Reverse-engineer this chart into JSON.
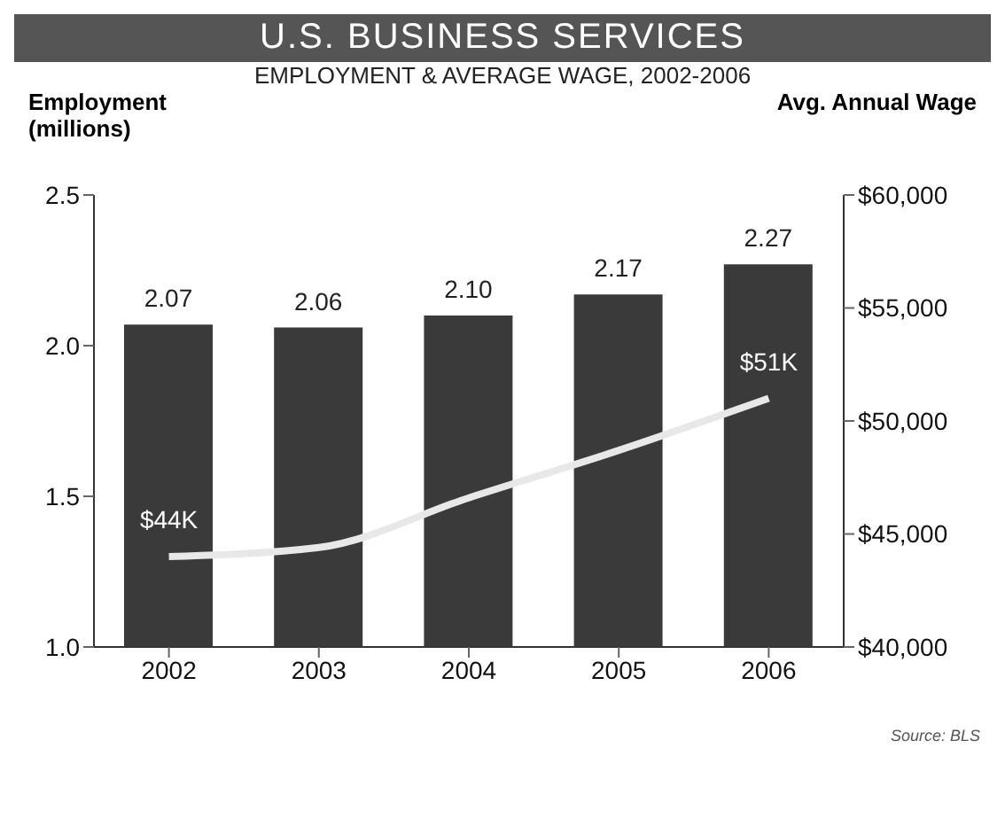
{
  "chart_data": {
    "type": "bar",
    "title": "U.S. BUSINESS SERVICES",
    "subtitle": "EMPLOYMENT & AVERAGE WAGE, 2002-2006",
    "ylabel": "Employment\n(millions)",
    "y2label": "Avg. Annual Wage",
    "categories": [
      "2002",
      "2003",
      "2004",
      "2005",
      "2006"
    ],
    "series": [
      {
        "color": "#3a3a3a",
        "values": [
          2.07,
          2.06,
          2.1,
          2.17,
          2.27
        ],
        "value_labels": [
          "2.07",
          "2.06",
          "2.10",
          "2.17",
          "2.27"
        ]
      },
      {
        "type": "line",
        "axis": "y2",
        "color": "#e8e8e8",
        "values": [
          44000,
          44400,
          46600,
          48700,
          51000
        ],
        "value_labels": [
          "$44K",
          null,
          null,
          null,
          "$51K"
        ]
      }
    ],
    "ylim": [
      1.0,
      2.5
    ],
    "yticks": [
      {
        "value": 1.0,
        "label": "1.0"
      },
      {
        "value": 1.5,
        "label": "1.5"
      },
      {
        "value": 2.0,
        "label": "2.0"
      },
      {
        "value": 2.5,
        "label": "2.5"
      }
    ],
    "y2lim": [
      40000,
      60000
    ],
    "y2ticks": [
      {
        "value": 40000,
        "label": "$40,000"
      },
      {
        "value": 45000,
        "label": "$45,000"
      },
      {
        "value": 50000,
        "label": "$50,000"
      },
      {
        "value": 55000,
        "label": "$55,000"
      },
      {
        "value": 60000,
        "label": "$60,000"
      }
    ],
    "marker": "none",
    "annotations": [
      "Source: BLS"
    ]
  }
}
